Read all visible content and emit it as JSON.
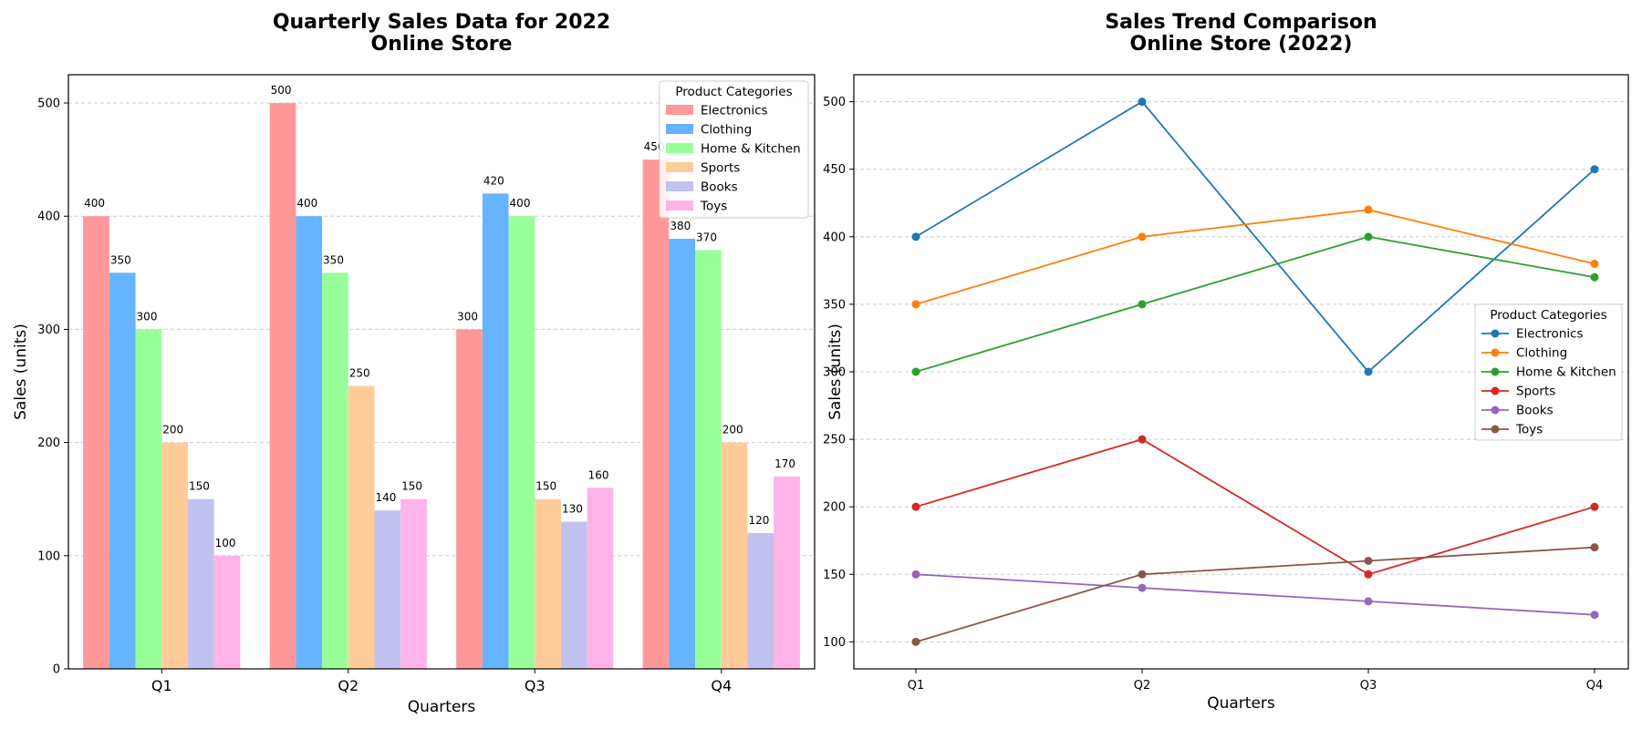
{
  "chart_data": [
    {
      "type": "bar",
      "title": [
        "Quarterly Sales Data for 2022",
        "Online Store"
      ],
      "xlabel": "Quarters",
      "ylabel": "Sales (units)",
      "categories": [
        "Q1",
        "Q2",
        "Q3",
        "Q4"
      ],
      "ylim": [
        0,
        525
      ],
      "yticks": [
        0,
        100,
        200,
        300,
        400,
        500
      ],
      "grid": "y",
      "legend": {
        "title": "Product Categories",
        "placement": "top-right"
      },
      "series": [
        {
          "name": "Electronics",
          "color": "#ff9999",
          "values": [
            400,
            500,
            300,
            450
          ]
        },
        {
          "name": "Clothing",
          "color": "#66b3ff",
          "values": [
            350,
            400,
            420,
            380
          ]
        },
        {
          "name": "Home & Kitchen",
          "color": "#99ff99",
          "values": [
            300,
            350,
            400,
            370
          ]
        },
        {
          "name": "Sports",
          "color": "#ffcc99",
          "values": [
            200,
            250,
            150,
            200
          ]
        },
        {
          "name": "Books",
          "color": "#c2c2f0",
          "values": [
            150,
            140,
            130,
            120
          ]
        },
        {
          "name": "Toys",
          "color": "#ffb3e6",
          "values": [
            100,
            150,
            160,
            170
          ]
        }
      ]
    },
    {
      "type": "line",
      "title": [
        "Sales Trend Comparison",
        "Online Store (2022)"
      ],
      "xlabel": "Quarters",
      "ylabel": "Sales (units)",
      "categories": [
        "Q1",
        "Q2",
        "Q3",
        "Q4"
      ],
      "ylim": [
        80,
        520
      ],
      "yticks": [
        100,
        150,
        200,
        250,
        300,
        350,
        400,
        450,
        500
      ],
      "grid": "y",
      "legend": {
        "title": "Product Categories",
        "placement": "center-right"
      },
      "series": [
        {
          "name": "Electronics",
          "color": "#1f77b4",
          "values": [
            400,
            500,
            300,
            450
          ]
        },
        {
          "name": "Clothing",
          "color": "#ff7f0e",
          "values": [
            350,
            400,
            420,
            380
          ]
        },
        {
          "name": "Home & Kitchen",
          "color": "#2ca02c",
          "values": [
            300,
            350,
            400,
            370
          ]
        },
        {
          "name": "Sports",
          "color": "#d62728",
          "values": [
            200,
            250,
            150,
            200
          ]
        },
        {
          "name": "Books",
          "color": "#9467bd",
          "values": [
            150,
            140,
            130,
            120
          ]
        },
        {
          "name": "Toys",
          "color": "#8c564b",
          "values": [
            100,
            150,
            160,
            170
          ]
        }
      ]
    }
  ]
}
